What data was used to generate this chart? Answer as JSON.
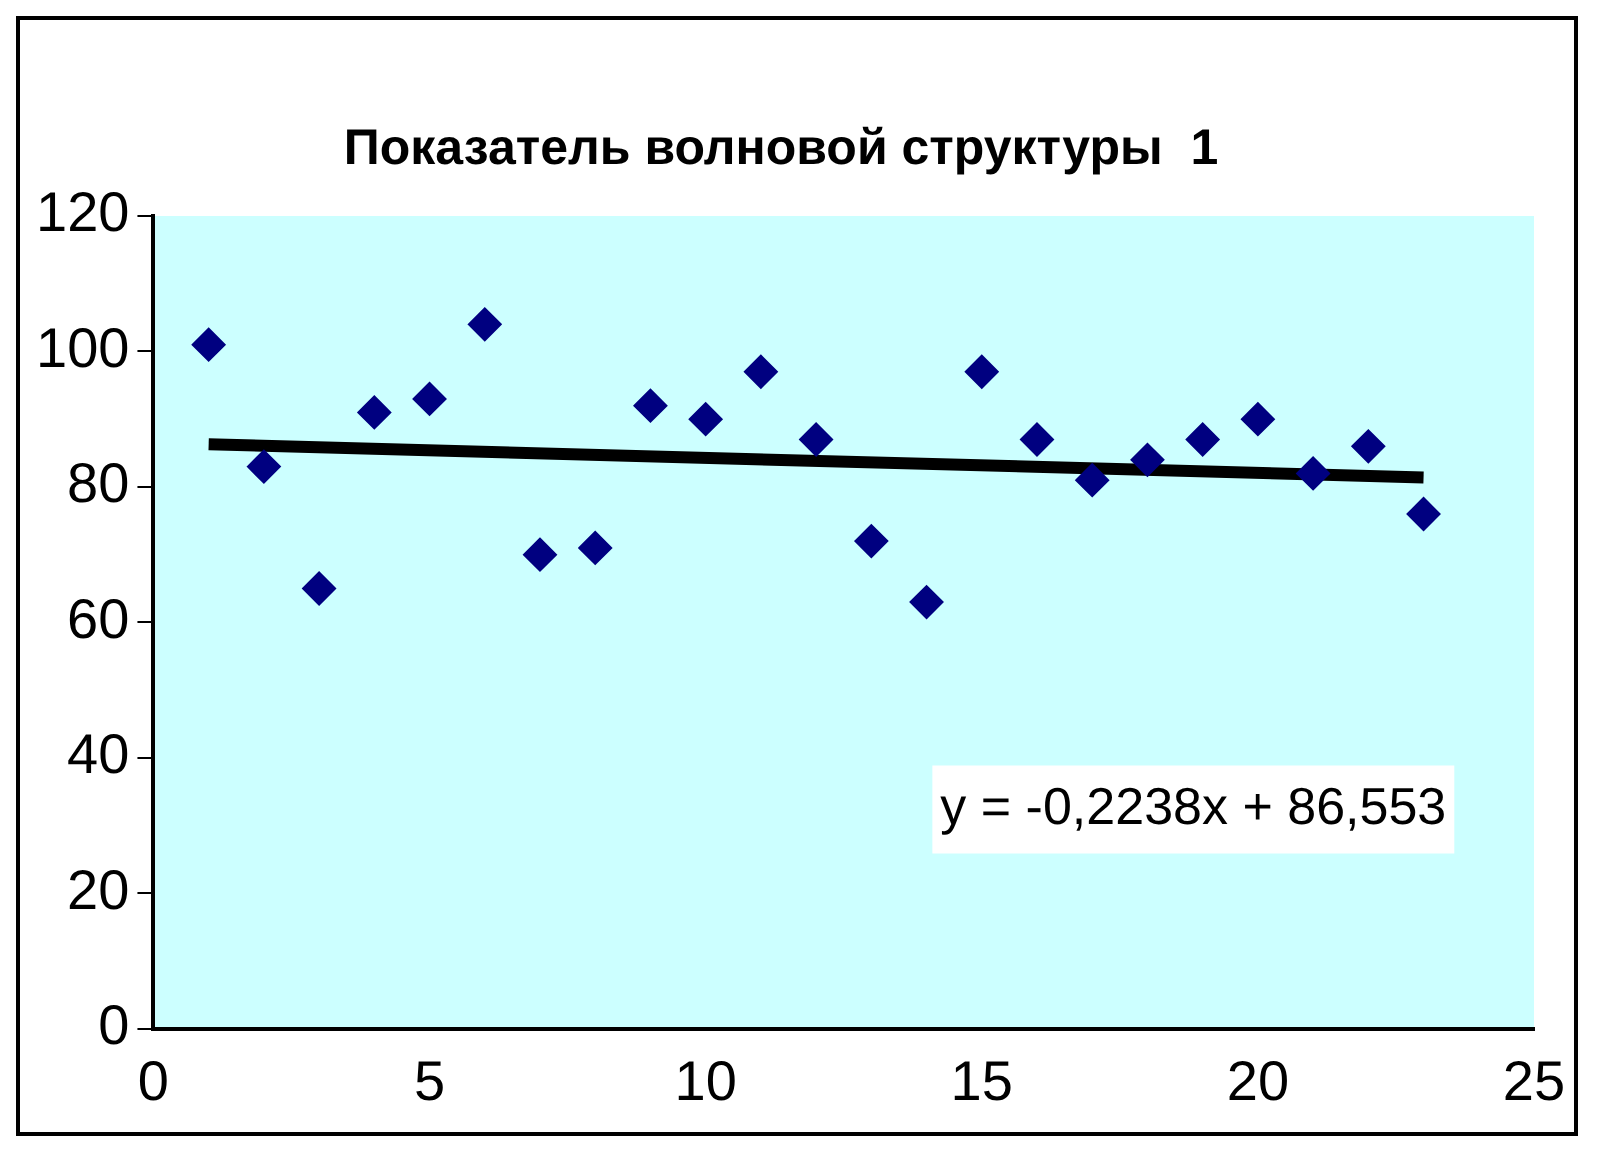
{
  "chart_data": {
    "type": "scatter",
    "title": "Показатель волновой структуры  1",
    "x": [
      1,
      2,
      3,
      4,
      5,
      6,
      7,
      8,
      9,
      10,
      11,
      12,
      13,
      14,
      15,
      16,
      17,
      18,
      19,
      20,
      21,
      22,
      23
    ],
    "series": [
      {
        "type": "scatter",
        "color": "#000080",
        "marker": "diamond",
        "values": [
          101,
          83,
          65,
          91,
          93,
          104,
          70,
          71,
          92,
          90,
          97,
          87,
          72,
          63,
          97,
          87,
          81,
          84,
          87,
          90,
          82,
          86,
          76
        ]
      },
      {
        "type": "line",
        "color": "#000000",
        "marker": "none",
        "x": [
          1,
          23
        ],
        "values": [
          86.3,
          81.4
        ]
      }
    ],
    "xlim": [
      0,
      25
    ],
    "xticks": [
      0,
      5,
      10,
      15,
      20,
      25
    ],
    "ylim": [
      0,
      120
    ],
    "yticks": [
      0,
      20,
      40,
      60,
      80,
      100,
      120
    ],
    "grid": false,
    "legend": false,
    "annotations": [
      "y = -0,2238x + 86,553"
    ]
  }
}
